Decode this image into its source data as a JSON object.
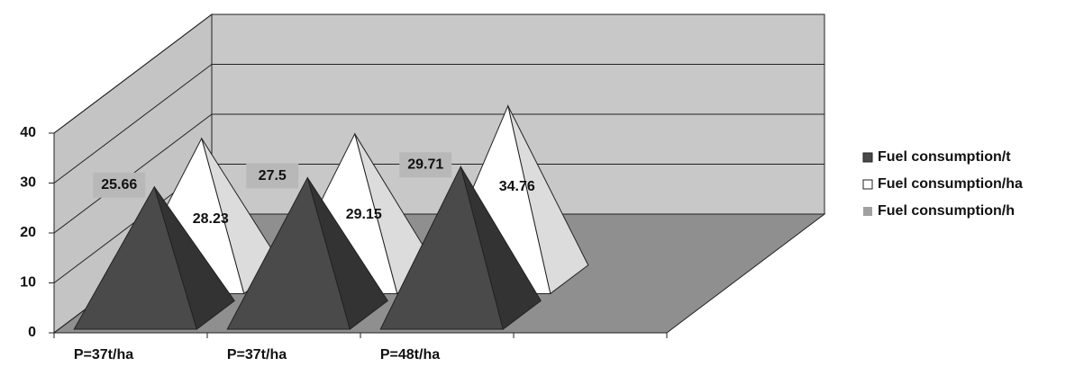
{
  "chart_data": {
    "type": "pyramid3d",
    "categories": [
      "P=37t/ha",
      "P=37t/ha",
      "P=48t/ha",
      null
    ],
    "series": [
      {
        "name": "Fuel consumption/t",
        "color": "#4a4a4a",
        "values": [
          25.66,
          27.5,
          29.71,
          null
        ]
      },
      {
        "name": "Fuel consumption/ha",
        "color": "#ffffff",
        "values": [
          28.23,
          29.15,
          34.76,
          null
        ]
      },
      {
        "name": "Fuel consumption/h",
        "color": "#a0a0a0",
        "values": [
          null,
          null,
          null,
          null
        ]
      }
    ],
    "ylim": [
      0,
      40
    ],
    "yticks": [
      0,
      10,
      20,
      30,
      40
    ],
    "grid": true,
    "legend": "right"
  }
}
